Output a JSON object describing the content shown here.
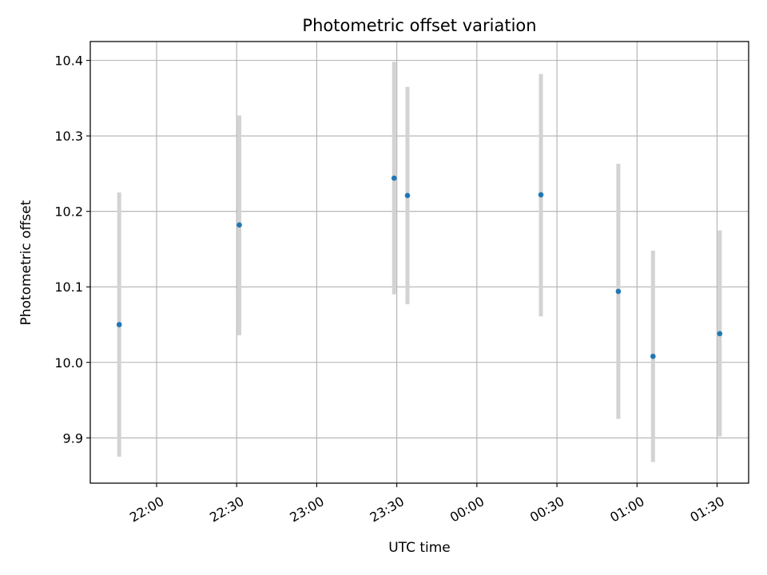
{
  "chart_data": {
    "type": "scatter",
    "title": "Photometric offset variation",
    "xlabel": "UTC time",
    "ylabel": "Photometric offset",
    "x_ticks": [
      "22:00",
      "22:30",
      "23:00",
      "23:30",
      "00:00",
      "00:30",
      "01:00",
      "01:30"
    ],
    "x_tick_hours": [
      22.0,
      22.5,
      23.0,
      23.5,
      24.0,
      24.5,
      25.0,
      25.5
    ],
    "xlim_hours": [
      21.586,
      25.697
    ],
    "y_ticks": [
      9.9,
      10.0,
      10.1,
      10.2,
      10.3,
      10.4
    ],
    "ylim": [
      9.84,
      10.425
    ],
    "grid": true,
    "points": [
      {
        "time": "21:46",
        "value": 10.05,
        "err_low": 9.875,
        "err_high": 10.225
      },
      {
        "time": "22:31",
        "value": 10.182,
        "err_low": 10.036,
        "err_high": 10.327
      },
      {
        "time": "23:29",
        "value": 10.244,
        "err_low": 10.09,
        "err_high": 10.398
      },
      {
        "time": "23:34",
        "value": 10.221,
        "err_low": 10.077,
        "err_high": 10.365
      },
      {
        "time": "00:24",
        "value": 10.222,
        "err_low": 10.061,
        "err_high": 10.382
      },
      {
        "time": "00:53",
        "value": 10.094,
        "err_low": 9.925,
        "err_high": 10.263
      },
      {
        "time": "01:06",
        "value": 10.008,
        "err_low": 9.868,
        "err_high": 10.148
      },
      {
        "time": "01:31",
        "value": 10.038,
        "err_low": 9.902,
        "err_high": 10.175
      }
    ],
    "colors": {
      "points": "#1f77b4",
      "error_bars": "#d3d3d3",
      "grid": "#b0b0b0"
    }
  }
}
